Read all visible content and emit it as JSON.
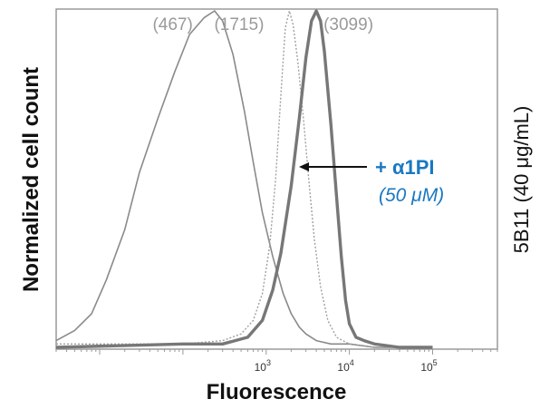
{
  "chart_data": {
    "type": "line",
    "title": "",
    "xlabel": "Fluorescence",
    "ylabel": "Normalized cell count",
    "right_label": "5B11 (40 μg/mL)",
    "x_scale": "log",
    "x_ticks": [
      {
        "base": "10",
        "exp": "3",
        "value": 1000
      },
      {
        "base": "10",
        "exp": "4",
        "value": 10000
      },
      {
        "base": "10",
        "exp": "5",
        "value": 100000
      }
    ],
    "xlim": [
      3,
      600000
    ],
    "ylim": [
      0,
      1
    ],
    "grid": false,
    "colors": {
      "axis": "#9a9a9a",
      "series_thin": "#8a8a8a",
      "series_dotted": "#a0a0a0",
      "series_thick": "#777777",
      "annotation": "#1a78c2"
    },
    "series": [
      {
        "name": "",
        "style": "thin",
        "peak_label": "(467)",
        "x": [
          3,
          5,
          8,
          12,
          20,
          30,
          50,
          80,
          120,
          180,
          240,
          300,
          400,
          550,
          700,
          900,
          1200,
          1600,
          2000,
          2500,
          3000,
          4000,
          6000,
          10000,
          20000,
          50000
        ],
        "y": [
          0.02,
          0.05,
          0.1,
          0.2,
          0.35,
          0.52,
          0.68,
          0.82,
          0.93,
          0.98,
          1.0,
          0.97,
          0.87,
          0.7,
          0.55,
          0.4,
          0.27,
          0.16,
          0.1,
          0.06,
          0.04,
          0.02,
          0.01,
          0.01,
          0.0,
          0.0
        ]
      },
      {
        "name": "",
        "style": "dotted",
        "peak_label": "(1715)",
        "x": [
          3,
          100,
          300,
          500,
          700,
          900,
          1100,
          1300,
          1500,
          1700,
          1900,
          2100,
          2400,
          2800,
          3300,
          3800,
          4500,
          5500,
          7000,
          10000,
          20000
        ],
        "y": [
          0.01,
          0.01,
          0.02,
          0.04,
          0.08,
          0.16,
          0.3,
          0.5,
          0.75,
          0.95,
          1.0,
          0.96,
          0.85,
          0.68,
          0.48,
          0.32,
          0.18,
          0.08,
          0.03,
          0.01,
          0.0
        ]
      },
      {
        "name": "",
        "style": "thick",
        "peak_label": "(3099)",
        "x": [
          3,
          100,
          300,
          600,
          900,
          1200,
          1500,
          2000,
          2500,
          3000,
          3500,
          4000,
          4500,
          5000,
          6000,
          7000,
          8000,
          9000,
          10000,
          12000,
          15000,
          20000,
          40000,
          100000
        ],
        "y": [
          0.0,
          0.01,
          0.01,
          0.03,
          0.08,
          0.17,
          0.28,
          0.48,
          0.68,
          0.86,
          0.97,
          1.0,
          0.97,
          0.88,
          0.66,
          0.45,
          0.27,
          0.14,
          0.07,
          0.03,
          0.02,
          0.01,
          0.0,
          0.0
        ]
      }
    ],
    "annotation": {
      "line1": "+ α1PI",
      "line2": "(50 μM)"
    }
  }
}
